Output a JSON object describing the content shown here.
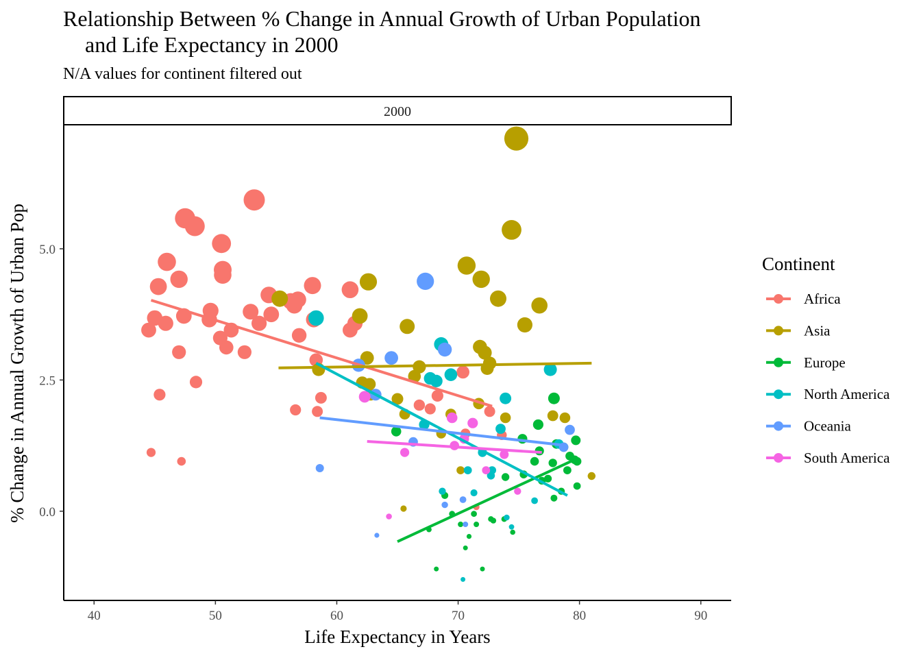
{
  "chart_data": {
    "type": "scatter",
    "title": "Relationship Between % Change in Annual Growth of Urban Population\n    and Life Expectancy in 2000",
    "subtitle": "N/A values for continent filtered out",
    "facet_label": "2000",
    "xlabel": "Life Expectancy in Years",
    "ylabel": "% Change in Annual Growth of Urban Pop",
    "xlim": [
      37.5,
      92.5
    ],
    "ylim": [
      -1.7,
      7.35
    ],
    "x_ticks": [
      "40",
      "50",
      "60",
      "70",
      "80",
      "90"
    ],
    "x_tick_values": [
      40,
      50,
      60,
      70,
      80,
      90
    ],
    "y_ticks": [
      "0.0",
      "2.5",
      "5.0"
    ],
    "y_tick_values": [
      0,
      2.5,
      5.0
    ],
    "grid": false,
    "size_encodes": "urban pop growth (larger for higher values)",
    "legend": {
      "title": "Continent",
      "position": "right"
    },
    "series": [
      {
        "name": "Africa",
        "color": "#F8766D",
        "trend": [
          [
            44.7,
            4.02
          ],
          [
            72.8,
            2.0
          ]
        ],
        "points": [
          [
            44.5,
            3.45
          ],
          [
            44.7,
            1.12
          ],
          [
            45.0,
            3.68
          ],
          [
            45.3,
            4.28
          ],
          [
            45.4,
            2.22
          ],
          [
            46.0,
            4.75
          ],
          [
            45.9,
            3.58
          ],
          [
            47.0,
            3.03
          ],
          [
            47.0,
            4.42
          ],
          [
            47.2,
            0.95
          ],
          [
            47.4,
            3.72
          ],
          [
            47.5,
            5.58
          ],
          [
            48.3,
            5.43
          ],
          [
            48.4,
            2.46
          ],
          [
            49.6,
            3.82
          ],
          [
            49.5,
            3.65
          ],
          [
            50.4,
            3.3
          ],
          [
            50.5,
            5.1
          ],
          [
            50.6,
            4.5
          ],
          [
            50.6,
            4.6
          ],
          [
            50.9,
            3.12
          ],
          [
            51.3,
            3.45
          ],
          [
            52.4,
            3.03
          ],
          [
            52.9,
            3.8
          ],
          [
            53.2,
            5.93
          ],
          [
            53.6,
            3.58
          ],
          [
            54.4,
            4.12
          ],
          [
            54.6,
            3.75
          ],
          [
            56.2,
            4.0
          ],
          [
            56.5,
            3.92
          ],
          [
            56.6,
            1.93
          ],
          [
            56.8,
            4.03
          ],
          [
            56.9,
            3.35
          ],
          [
            58.0,
            4.3
          ],
          [
            58.1,
            3.65
          ],
          [
            58.3,
            2.88
          ],
          [
            58.4,
            1.9
          ],
          [
            58.7,
            2.16
          ],
          [
            61.1,
            4.22
          ],
          [
            61.1,
            3.45
          ],
          [
            61.5,
            3.58
          ],
          [
            66.8,
            2.02
          ],
          [
            67.7,
            1.95
          ],
          [
            68.3,
            2.2
          ],
          [
            70.4,
            2.65
          ],
          [
            70.6,
            1.48
          ],
          [
            71.5,
            0.08
          ],
          [
            72.6,
            1.9
          ],
          [
            73.6,
            1.45
          ]
        ]
      },
      {
        "name": "Asia",
        "color": "#B79F00",
        "trend": [
          [
            55.2,
            2.73
          ],
          [
            81.0,
            2.82
          ]
        ],
        "points": [
          [
            55.3,
            4.05
          ],
          [
            58.5,
            2.7
          ],
          [
            61.9,
            3.72
          ],
          [
            62.1,
            2.45
          ],
          [
            62.5,
            2.92
          ],
          [
            62.6,
            4.37
          ],
          [
            62.7,
            2.42
          ],
          [
            62.8,
            2.22
          ],
          [
            65.0,
            2.14
          ],
          [
            65.5,
            0.05
          ],
          [
            65.6,
            1.85
          ],
          [
            65.8,
            3.52
          ],
          [
            66.4,
            2.57
          ],
          [
            66.8,
            2.75
          ],
          [
            68.6,
            1.48
          ],
          [
            69.4,
            1.85
          ],
          [
            70.2,
            0.78
          ],
          [
            70.7,
            4.68
          ],
          [
            71.7,
            2.05
          ],
          [
            71.8,
            3.13
          ],
          [
            71.9,
            4.42
          ],
          [
            72.2,
            3.02
          ],
          [
            72.4,
            2.72
          ],
          [
            72.6,
            2.82
          ],
          [
            73.3,
            4.05
          ],
          [
            73.9,
            1.78
          ],
          [
            74.4,
            5.36
          ],
          [
            74.8,
            7.1
          ],
          [
            75.5,
            3.55
          ],
          [
            76.7,
            3.92
          ],
          [
            77.8,
            1.82
          ],
          [
            78.8,
            1.78
          ],
          [
            81.0,
            0.67
          ]
        ]
      },
      {
        "name": "Europe",
        "color": "#00BA38",
        "trend": [
          [
            65.0,
            -0.58
          ],
          [
            79.3,
            0.95
          ]
        ],
        "points": [
          [
            64.9,
            1.52
          ],
          [
            67.6,
            -0.35
          ],
          [
            68.2,
            -1.1
          ],
          [
            68.9,
            0.3
          ],
          [
            69.5,
            -0.05
          ],
          [
            70.2,
            -0.25
          ],
          [
            70.6,
            -0.7
          ],
          [
            70.9,
            -0.48
          ],
          [
            71.3,
            -0.05
          ],
          [
            71.5,
            -0.25
          ],
          [
            72.0,
            -1.1
          ],
          [
            72.7,
            -0.15
          ],
          [
            72.9,
            -0.18
          ],
          [
            73.8,
            -0.15
          ],
          [
            73.9,
            0.65
          ],
          [
            74.5,
            -0.4
          ],
          [
            75.3,
            1.38
          ],
          [
            75.4,
            0.7
          ],
          [
            76.3,
            0.95
          ],
          [
            76.6,
            1.65
          ],
          [
            76.7,
            1.15
          ],
          [
            76.9,
            0.58
          ],
          [
            77.4,
            0.62
          ],
          [
            77.8,
            0.92
          ],
          [
            77.9,
            2.15
          ],
          [
            77.9,
            0.25
          ],
          [
            78.1,
            1.28
          ],
          [
            78.5,
            0.38
          ],
          [
            78.7,
            1.22
          ],
          [
            79.0,
            0.78
          ],
          [
            79.2,
            1.05
          ],
          [
            79.6,
            0.98
          ],
          [
            79.7,
            1.35
          ],
          [
            79.8,
            0.48
          ],
          [
            79.8,
            0.95
          ]
        ]
      },
      {
        "name": "North America",
        "color": "#00BFC4",
        "trend": [
          [
            58.3,
            2.82
          ],
          [
            79.0,
            0.3
          ]
        ],
        "points": [
          [
            58.3,
            3.68
          ],
          [
            67.2,
            1.65
          ],
          [
            67.7,
            2.53
          ],
          [
            68.2,
            2.48
          ],
          [
            68.6,
            3.18
          ],
          [
            68.7,
            0.38
          ],
          [
            69.4,
            2.6
          ],
          [
            70.4,
            -1.3
          ],
          [
            70.8,
            0.78
          ],
          [
            71.3,
            0.35
          ],
          [
            72.0,
            1.12
          ],
          [
            72.7,
            0.68
          ],
          [
            72.8,
            0.78
          ],
          [
            73.5,
            1.57
          ],
          [
            73.9,
            2.15
          ],
          [
            74.0,
            -0.12
          ],
          [
            74.4,
            -0.3
          ],
          [
            76.3,
            0.2
          ],
          [
            77.6,
            2.7
          ],
          [
            78.3,
            1.28
          ]
        ]
      },
      {
        "name": "Oceania",
        "color": "#619CFF",
        "trend": [
          [
            58.6,
            1.78
          ],
          [
            79.0,
            1.25
          ]
        ],
        "points": [
          [
            58.6,
            0.82
          ],
          [
            63.3,
            -0.46
          ],
          [
            61.8,
            2.78
          ],
          [
            63.2,
            2.22
          ],
          [
            64.5,
            2.92
          ],
          [
            66.3,
            1.32
          ],
          [
            67.3,
            4.38
          ],
          [
            68.9,
            0.12
          ],
          [
            68.9,
            3.08
          ],
          [
            70.4,
            0.22
          ],
          [
            70.6,
            -0.25
          ],
          [
            78.7,
            1.22
          ],
          [
            79.2,
            1.55
          ]
        ]
      },
      {
        "name": "South America",
        "color": "#F564E3",
        "trend": [
          [
            62.5,
            1.33
          ],
          [
            76.9,
            1.12
          ]
        ],
        "points": [
          [
            62.3,
            2.18
          ],
          [
            64.3,
            -0.1
          ],
          [
            65.6,
            1.12
          ],
          [
            69.5,
            1.78
          ],
          [
            69.7,
            1.25
          ],
          [
            70.5,
            1.38
          ],
          [
            71.2,
            1.68
          ],
          [
            72.3,
            0.78
          ],
          [
            73.8,
            1.08
          ],
          [
            74.9,
            0.38
          ]
        ]
      }
    ]
  }
}
